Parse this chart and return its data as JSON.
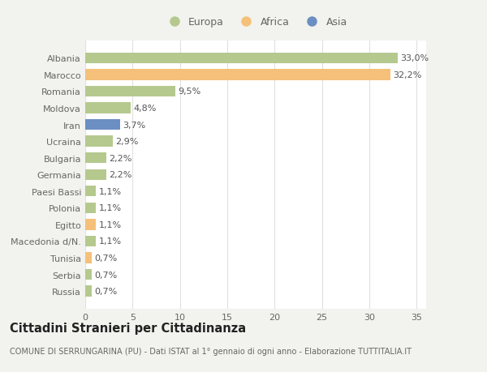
{
  "categories": [
    "Russia",
    "Serbia",
    "Tunisia",
    "Macedonia d/N.",
    "Egitto",
    "Polonia",
    "Paesi Bassi",
    "Germania",
    "Bulgaria",
    "Ucraina",
    "Iran",
    "Moldova",
    "Romania",
    "Marocco",
    "Albania"
  ],
  "values": [
    0.7,
    0.7,
    0.7,
    1.1,
    1.1,
    1.1,
    1.1,
    2.2,
    2.2,
    2.9,
    3.7,
    4.8,
    9.5,
    32.2,
    33.0
  ],
  "labels": [
    "0,7%",
    "0,7%",
    "0,7%",
    "1,1%",
    "1,1%",
    "1,1%",
    "1,1%",
    "2,2%",
    "2,2%",
    "2,9%",
    "3,7%",
    "4,8%",
    "9,5%",
    "32,2%",
    "33,0%"
  ],
  "colors": [
    "#b5c98e",
    "#b5c98e",
    "#f5c07a",
    "#b5c98e",
    "#f5c07a",
    "#b5c98e",
    "#b5c98e",
    "#b5c98e",
    "#b5c98e",
    "#b5c98e",
    "#6b8fc2",
    "#b5c98e",
    "#b5c98e",
    "#f5c07a",
    "#b5c98e"
  ],
  "legend": [
    {
      "label": "Europa",
      "color": "#b5c98e"
    },
    {
      "label": "Africa",
      "color": "#f5c07a"
    },
    {
      "label": "Asia",
      "color": "#6b8fc2"
    }
  ],
  "xlim": [
    0,
    36
  ],
  "xticks": [
    0,
    5,
    10,
    15,
    20,
    25,
    30,
    35
  ],
  "title": "Cittadini Stranieri per Cittadinanza",
  "subtitle": "COMUNE DI SERRUNGARINA (PU) - Dati ISTAT al 1° gennaio di ogni anno - Elaborazione TUTTITALIA.IT",
  "background_color": "#f2f2ee",
  "plot_background": "#ffffff",
  "grid_color": "#e0e0e0",
  "text_color": "#666666",
  "bar_text_color": "#555555",
  "label_fontsize": 8.0,
  "tick_fontsize": 8.0,
  "title_fontsize": 10.5,
  "subtitle_fontsize": 7.0,
  "bar_height": 0.65
}
